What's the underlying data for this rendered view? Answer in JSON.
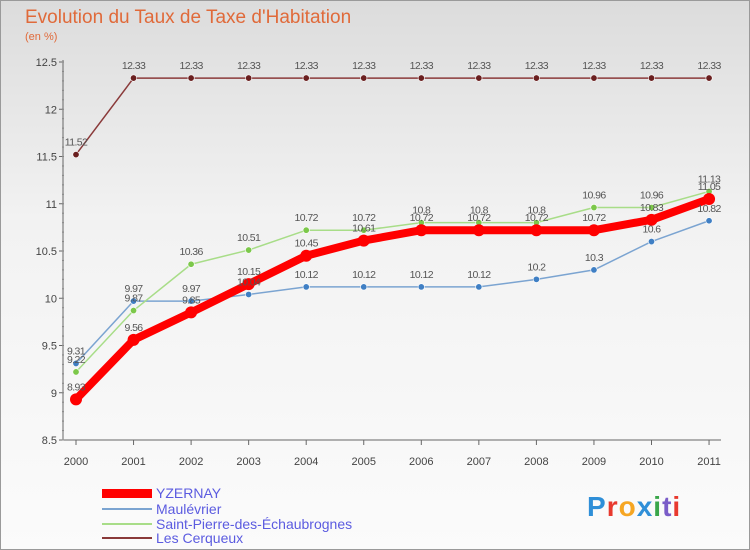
{
  "page": {
    "title": "Evolution du Taux de Taxe d'Habitation",
    "subtitle": "(en %)",
    "logo_text": "Proxiti",
    "logo_colors": [
      "#2f8fd8",
      "#e8392e",
      "#f6a623",
      "#2f8fd8",
      "#3aa64a",
      "#7a5cc8",
      "#e8392e"
    ]
  },
  "chart_data": {
    "type": "line",
    "x": [
      "2000",
      "2001",
      "2002",
      "2003",
      "2004",
      "2005",
      "2006",
      "2007",
      "2008",
      "2009",
      "2010",
      "2011"
    ],
    "ylim": [
      8.5,
      12.5
    ],
    "yticks": [
      "8.5",
      "9",
      "9.5",
      "10",
      "10.5",
      "11",
      "11.5",
      "12",
      "12.5"
    ],
    "legend_position": "bottom-left",
    "series": [
      {
        "name": "YZERNAY",
        "color": "#ff0000",
        "width": 8,
        "values": [
          8.93,
          9.56,
          9.85,
          10.15,
          10.45,
          10.61,
          10.72,
          10.72,
          10.72,
          10.72,
          10.83,
          11.05
        ],
        "labels": [
          "8.93",
          "9.56",
          "9.85",
          "10.15",
          "10.45",
          "10.61",
          "10.72",
          "10.72",
          "10.72",
          "10.72",
          "10.83",
          "11.05"
        ]
      },
      {
        "name": "Maulévrier",
        "color": "#7ba4d1",
        "width": 1.5,
        "values": [
          9.31,
          9.97,
          9.97,
          10.04,
          10.12,
          10.12,
          10.12,
          10.12,
          10.2,
          10.3,
          10.6,
          10.82
        ],
        "labels": [
          "9.31",
          "9.97",
          "9.97",
          "10.04",
          "10.12",
          "10.12",
          "10.12",
          "10.12",
          "10.2",
          "10.3",
          "10.6",
          "10.82"
        ]
      },
      {
        "name": "Saint-Pierre-des-Échaubrognes",
        "color": "#a8dd88",
        "width": 1.5,
        "values": [
          9.22,
          9.87,
          10.36,
          10.51,
          10.72,
          10.72,
          10.8,
          10.8,
          10.8,
          10.96,
          10.96,
          11.13
        ],
        "labels": [
          "9.22",
          "9.87",
          "10.36",
          "10.51",
          "10.72",
          "10.72",
          "10.8",
          "10.8",
          "10.8",
          "10.96",
          "10.96",
          "11.13"
        ]
      },
      {
        "name": "Les Cerqueux",
        "color": "#8a3a3a",
        "width": 1.5,
        "values": [
          11.52,
          12.33,
          12.33,
          12.33,
          12.33,
          12.33,
          12.33,
          12.33,
          12.33,
          12.33,
          12.33,
          12.33
        ],
        "labels": [
          "11.52",
          "12.33",
          "12.33",
          "12.33",
          "12.33",
          "12.33",
          "12.33",
          "12.33",
          "12.33",
          "12.33",
          "12.33",
          "12.33"
        ]
      }
    ]
  }
}
